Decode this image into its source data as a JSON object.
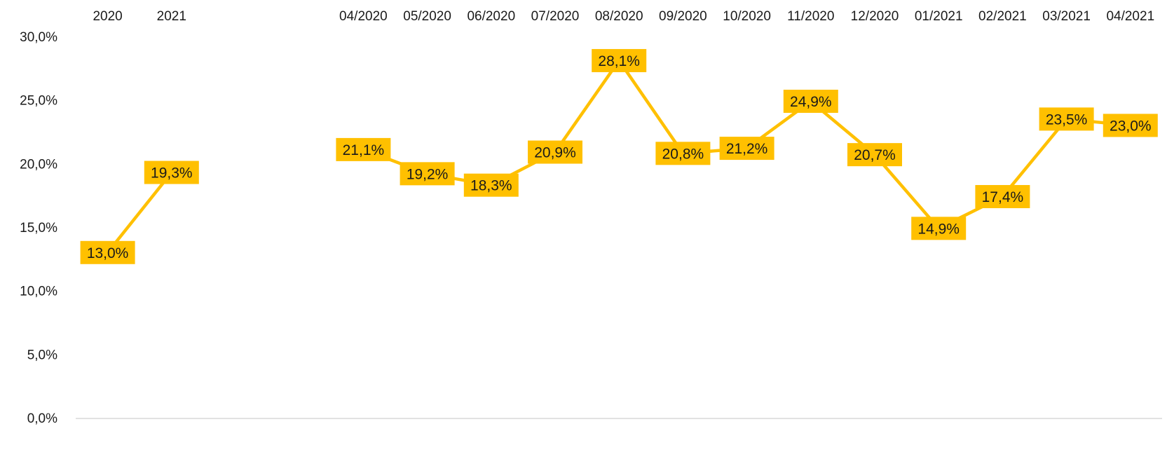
{
  "chart_data": {
    "type": "line",
    "title": "",
    "xlabel": "",
    "ylabel": "",
    "ylim": [
      0,
      30
    ],
    "y_ticks": [
      "0,0%",
      "5,0%",
      "10,0%",
      "15,0%",
      "20,0%",
      "25,0%",
      "30,0%"
    ],
    "x_axis_position": "top",
    "grid": false,
    "legend": "none",
    "colors": {
      "series": "#FFC000",
      "axis": "#d9d9d9",
      "text": "#1a1a1a"
    },
    "groups": [
      {
        "categories": [
          "2020",
          "2021"
        ],
        "values": [
          13.0,
          19.3
        ],
        "labels": [
          "13,0%",
          "19,3%"
        ]
      },
      {
        "categories": [
          "04/2020",
          "05/2020",
          "06/2020",
          "07/2020",
          "08/2020",
          "09/2020",
          "10/2020",
          "11/2020",
          "12/2020",
          "01/2021",
          "02/2021",
          "03/2021",
          "04/2021"
        ],
        "values": [
          21.1,
          19.2,
          18.3,
          20.9,
          28.1,
          20.8,
          21.2,
          24.9,
          20.7,
          14.9,
          17.4,
          23.5,
          23.0
        ],
        "labels": [
          "21,1%",
          "19,2%",
          "18,3%",
          "20,9%",
          "28,1%",
          "20,8%",
          "21,2%",
          "24,9%",
          "20,7%",
          "14,9%",
          "17,4%",
          "23,5%",
          "23,0%"
        ]
      }
    ]
  }
}
